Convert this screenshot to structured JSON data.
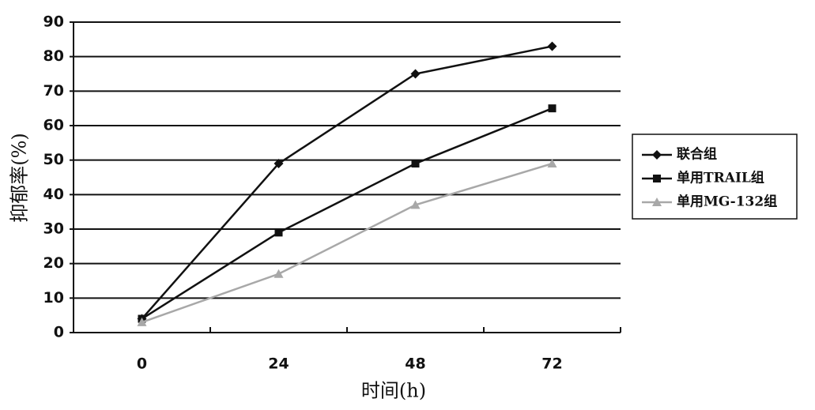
{
  "chart_data": {
    "type": "line",
    "x_label": "时间(h)",
    "y_label": "抑郁率(%)",
    "categories": [
      "0",
      "24",
      "48",
      "72"
    ],
    "series": [
      {
        "name": "联合组",
        "color": "#111111",
        "marker": "diamond",
        "values": [
          4,
          49,
          75,
          83
        ]
      },
      {
        "name": "单用TRAIL组",
        "color": "#111111",
        "marker": "square",
        "values": [
          4,
          29,
          49,
          65
        ]
      },
      {
        "name": "单用MG-132组",
        "color": "#a8a8a8",
        "marker": "triangle",
        "values": [
          3,
          17,
          37,
          49
        ]
      }
    ],
    "ylim": [
      0,
      90
    ],
    "yticks": [
      0,
      10,
      20,
      30,
      40,
      50,
      60,
      70,
      80,
      90
    ],
    "grid": true,
    "legend": "right"
  }
}
